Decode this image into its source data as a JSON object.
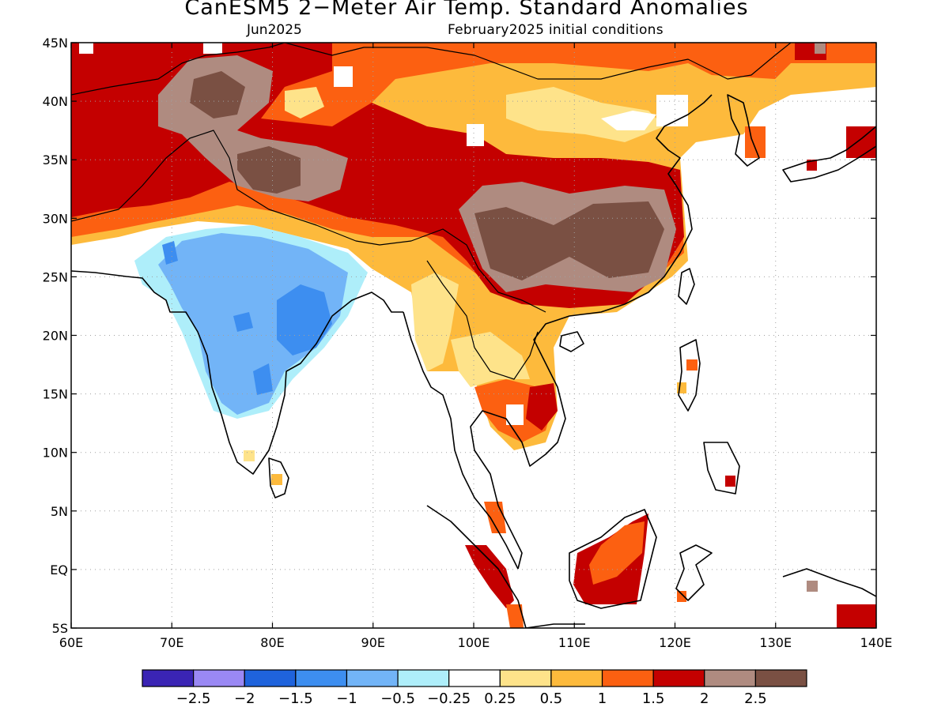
{
  "title": "CanESM5 2−Meter Air Temp. Standard Anomalies",
  "subtitle_left": "Jun2025",
  "subtitle_right": "February2025 initial conditions",
  "map": {
    "lon_range": [
      60,
      140
    ],
    "lat_range": [
      -5,
      45
    ],
    "lon_ticks": [
      {
        "value": 60,
        "label": "60E"
      },
      {
        "value": 70,
        "label": "70E"
      },
      {
        "value": 80,
        "label": "80E"
      },
      {
        "value": 90,
        "label": "90E"
      },
      {
        "value": 100,
        "label": "100E"
      },
      {
        "value": 110,
        "label": "110E"
      },
      {
        "value": 120,
        "label": "120E"
      },
      {
        "value": 130,
        "label": "130E"
      },
      {
        "value": 140,
        "label": "140E"
      }
    ],
    "lat_ticks": [
      {
        "value": 45,
        "label": "45N"
      },
      {
        "value": 40,
        "label": "40N"
      },
      {
        "value": 35,
        "label": "35N"
      },
      {
        "value": 30,
        "label": "30N"
      },
      {
        "value": 25,
        "label": "25N"
      },
      {
        "value": 20,
        "label": "20N"
      },
      {
        "value": 15,
        "label": "15N"
      },
      {
        "value": 10,
        "label": "10N"
      },
      {
        "value": 5,
        "label": "5N"
      },
      {
        "value": 0,
        "label": "EQ"
      },
      {
        "value": -5,
        "label": "5S"
      }
    ],
    "gridlines": "dotted",
    "projection": "cylindrical equidistant"
  },
  "colorbar": {
    "colors": [
      "#3a24b4",
      "#9a88f4",
      "#1f63dc",
      "#3d8ef0",
      "#72b4f7",
      "#aeeefa",
      "#ffffff",
      "#fee38a",
      "#fdba3c",
      "#fc6011",
      "#c40000",
      "#af8b80",
      "#7a5043"
    ],
    "labels": [
      "−2.5",
      "−2",
      "−1.5",
      "−1",
      "−0.5",
      "−0.25",
      "0.25",
      "0.5",
      "1",
      "1.5",
      "2",
      "2.5"
    ]
  },
  "colors": {
    "frame": "#000000",
    "coastline": "#000000",
    "grid": "#a0a0a0"
  }
}
